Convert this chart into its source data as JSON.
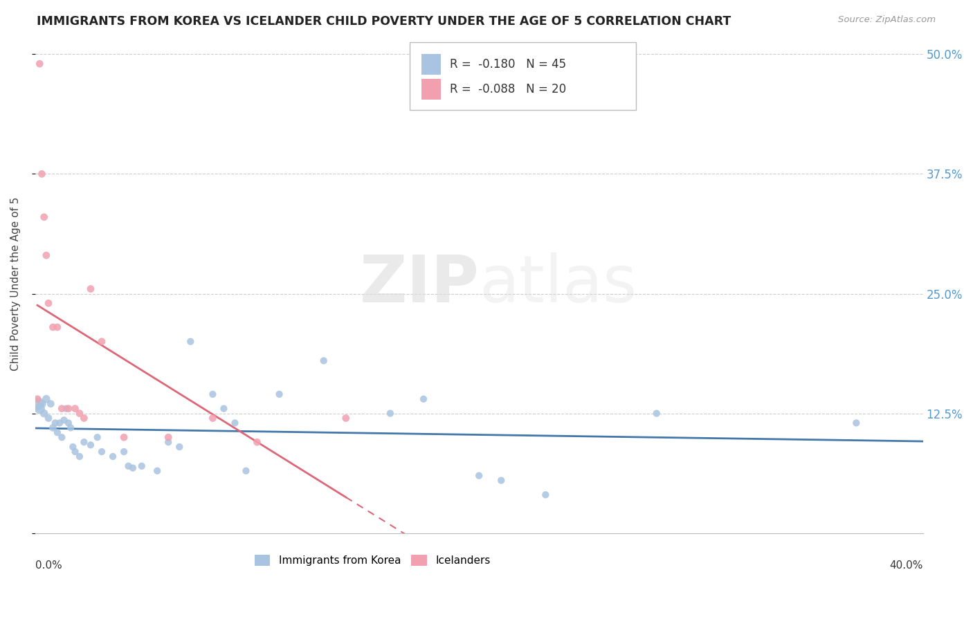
{
  "title": "IMMIGRANTS FROM KOREA VS ICELANDER CHILD POVERTY UNDER THE AGE OF 5 CORRELATION CHART",
  "source": "Source: ZipAtlas.com",
  "ylabel": "Child Poverty Under the Age of 5",
  "yticks": [
    0.0,
    0.125,
    0.25,
    0.375,
    0.5
  ],
  "ytick_labels": [
    "",
    "12.5%",
    "25.0%",
    "37.5%",
    "50.0%"
  ],
  "xlim": [
    0.0,
    0.4
  ],
  "ylim": [
    0.0,
    0.52
  ],
  "legend_korea_R": "-0.180",
  "legend_korea_N": "45",
  "legend_iceland_R": "-0.088",
  "legend_iceland_N": "20",
  "legend_label_korea": "Immigrants from Korea",
  "legend_label_iceland": "Icelanders",
  "color_korea": "#a8c4e0",
  "color_iceland": "#f2a0b0",
  "color_korea_line": "#4477aa",
  "color_iceland_line": "#dd6677",
  "watermark_zip": "ZIP",
  "watermark_atlas": "atlas",
  "korea_x": [
    0.001,
    0.002,
    0.003,
    0.004,
    0.005,
    0.006,
    0.007,
    0.008,
    0.009,
    0.01,
    0.011,
    0.012,
    0.013,
    0.014,
    0.015,
    0.016,
    0.017,
    0.018,
    0.02,
    0.022,
    0.025,
    0.028,
    0.03,
    0.035,
    0.04,
    0.042,
    0.044,
    0.048,
    0.055,
    0.06,
    0.065,
    0.07,
    0.08,
    0.085,
    0.09,
    0.095,
    0.11,
    0.13,
    0.16,
    0.175,
    0.2,
    0.21,
    0.23,
    0.28,
    0.37
  ],
  "korea_y": [
    0.135,
    0.13,
    0.135,
    0.125,
    0.14,
    0.12,
    0.135,
    0.11,
    0.115,
    0.105,
    0.115,
    0.1,
    0.118,
    0.13,
    0.115,
    0.11,
    0.09,
    0.085,
    0.08,
    0.095,
    0.092,
    0.1,
    0.085,
    0.08,
    0.085,
    0.07,
    0.068,
    0.07,
    0.065,
    0.095,
    0.09,
    0.2,
    0.145,
    0.13,
    0.115,
    0.065,
    0.145,
    0.18,
    0.125,
    0.14,
    0.06,
    0.055,
    0.04,
    0.125,
    0.115
  ],
  "korea_size": [
    200,
    120,
    80,
    70,
    70,
    60,
    60,
    60,
    55,
    55,
    55,
    55,
    55,
    55,
    55,
    55,
    55,
    55,
    55,
    55,
    55,
    55,
    55,
    55,
    55,
    55,
    55,
    55,
    55,
    55,
    55,
    55,
    55,
    55,
    55,
    55,
    55,
    55,
    55,
    55,
    55,
    55,
    55,
    55,
    55
  ],
  "iceland_x": [
    0.001,
    0.002,
    0.003,
    0.004,
    0.005,
    0.006,
    0.008,
    0.01,
    0.012,
    0.015,
    0.018,
    0.02,
    0.022,
    0.025,
    0.03,
    0.04,
    0.06,
    0.08,
    0.1,
    0.14
  ],
  "iceland_y": [
    0.14,
    0.49,
    0.375,
    0.33,
    0.29,
    0.24,
    0.215,
    0.215,
    0.13,
    0.13,
    0.13,
    0.125,
    0.12,
    0.255,
    0.2,
    0.1,
    0.1,
    0.12,
    0.095,
    0.12
  ],
  "iceland_size": [
    60,
    60,
    60,
    60,
    60,
    60,
    60,
    60,
    60,
    60,
    60,
    60,
    60,
    60,
    60,
    60,
    60,
    60,
    60,
    60
  ],
  "iceland_line_solid_end": 0.14,
  "iceland_line_dash_end": 0.37
}
